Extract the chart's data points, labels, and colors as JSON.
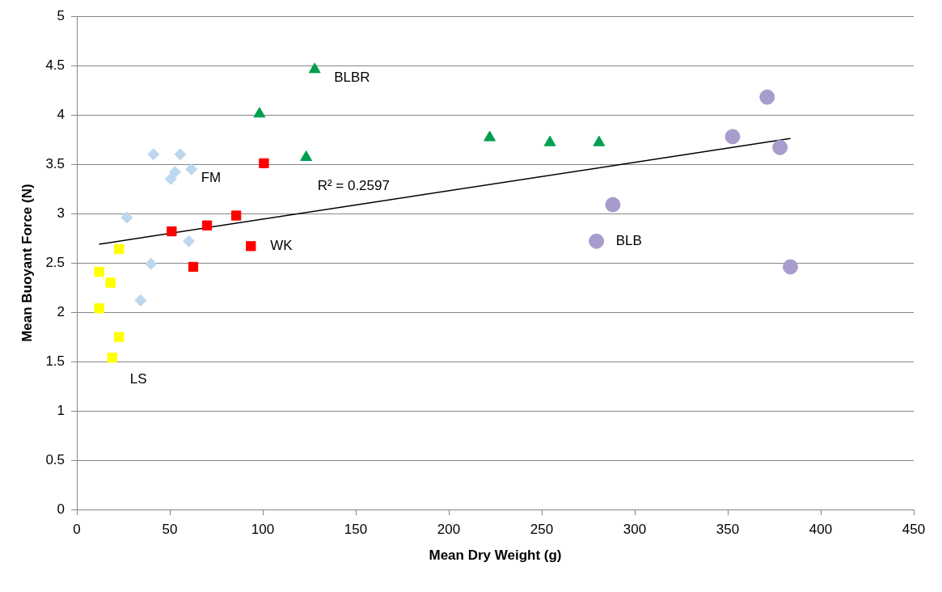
{
  "chart_data": {
    "type": "scatter",
    "xlabel": "Mean Dry Weight (g)",
    "ylabel": "Mean Buoyant Force (N)",
    "xlim": [
      0,
      450
    ],
    "xticks": [
      0,
      50,
      100,
      150,
      200,
      250,
      300,
      350,
      400,
      450
    ],
    "ylim": [
      0,
      5
    ],
    "yticks": [
      0,
      0.5,
      1,
      1.5,
      2,
      2.5,
      3,
      3.5,
      4,
      4.5,
      5
    ],
    "grid": "y",
    "legend": false,
    "series": [
      {
        "name": "LS",
        "color": "#ffff00",
        "marker": "square",
        "x": [
          12,
          12,
          18.1,
          22.7,
          22.7,
          19
        ],
        "values": [
          2.04,
          2.41,
          2.3,
          2.64,
          1.75,
          1.54
        ]
      },
      {
        "name": "FM",
        "color": "#bdd7ee",
        "marker": "diamond",
        "x": [
          41.2,
          55.6,
          52.8,
          61.6,
          50.5,
          26.9,
          60.2,
          39.9,
          34.3
        ],
        "values": [
          3.6,
          3.6,
          3.42,
          3.45,
          3.35,
          2.96,
          2.72,
          2.49,
          2.12
        ]
      },
      {
        "name": "WK",
        "color": "#ff0000",
        "marker": "square",
        "x": [
          100.6,
          85.7,
          70,
          51,
          93.6,
          62.6
        ],
        "values": [
          3.51,
          2.98,
          2.88,
          2.82,
          2.67,
          2.46
        ]
      },
      {
        "name": "BLBR",
        "color": "#00a050",
        "marker": "triangle",
        "x": [
          127.9,
          98.2,
          123.3,
          222,
          254.4,
          280.8
        ],
        "values": [
          4.46,
          4.01,
          3.57,
          3.77,
          3.72,
          3.72
        ]
      },
      {
        "name": "BLB",
        "color": "#a89ccc",
        "marker": "circle",
        "x": [
          371.2,
          352.6,
          378.1,
          288.2,
          279.4,
          383.7
        ],
        "values": [
          4.18,
          3.78,
          3.67,
          3.09,
          2.72,
          2.46
        ]
      },
      {
        "type": "line",
        "color": "#000000",
        "marker": "none",
        "x": [
          12,
          383.7
        ],
        "values": [
          2.69,
          3.76
        ]
      }
    ],
    "annotations": [
      "R² = 0.2597"
    ]
  }
}
